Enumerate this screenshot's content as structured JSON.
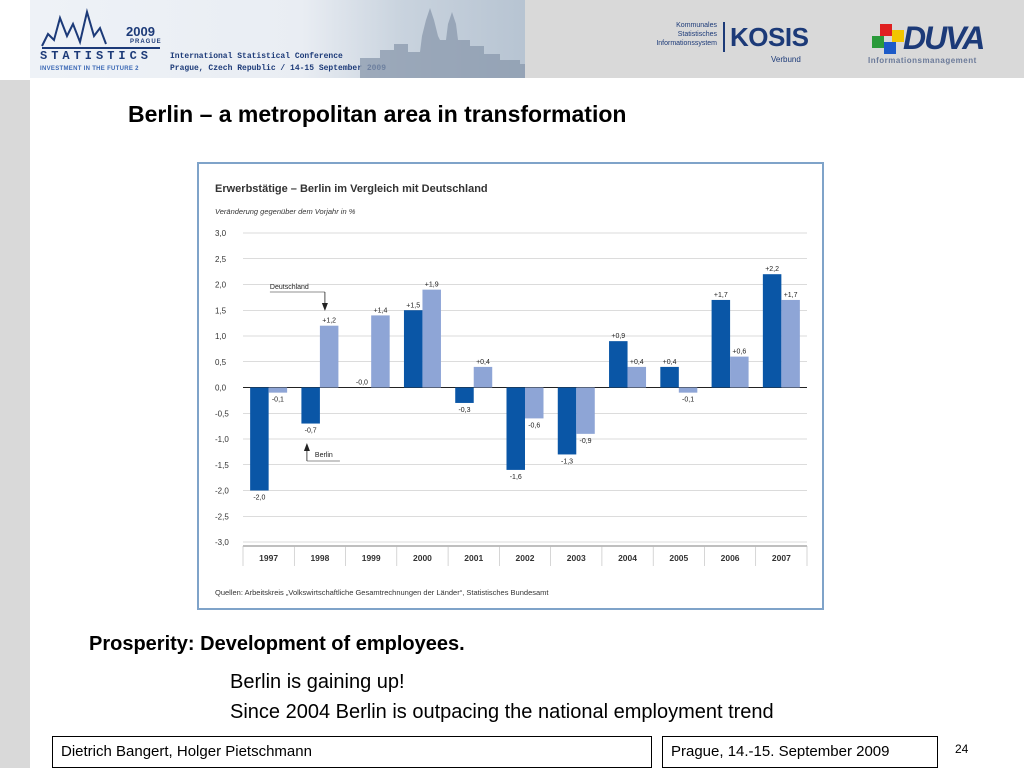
{
  "header": {
    "banner_year": "2009",
    "banner_prague": "PRAGUE",
    "banner_statistics": "STATISTICS",
    "banner_tagline": "INVESTMENT IN THE FUTURE 2",
    "conference_line1": "International Statistical Conference",
    "conference_line2": "Prague, Czech Republic / 14-15 September 2009",
    "kosis_small": [
      "Kommunales",
      "Statistisches",
      "Informationssystem"
    ],
    "kosis_title": "KOSIS",
    "kosis_verbund": "Verbund",
    "duva_title": "DUVA",
    "duva_sub": "Informationsmanagement"
  },
  "slide": {
    "title": "Berlin – a metropolitan area in transformation",
    "subhead": "Prosperity: Development of employees.",
    "line1": "Berlin is gaining up!",
    "line2": "Since 2004 Berlin is outpacing the national employment trend"
  },
  "footer": {
    "authors": "Dietrich Bangert, Holger Pietschmann",
    "event": "Prague, 14.-15. September 2009",
    "page": "24"
  },
  "colors": {
    "berlin": "#0a56a6",
    "deutschland": "#8ea5d6",
    "frame": "#7fa3c9"
  },
  "chart_data": {
    "type": "bar",
    "title": "Erwerbstätige – Berlin im Vergleich mit Deutschland",
    "subtitle": "Veränderung gegenüber dem Vorjahr in %",
    "source": "Quellen: Arbeitskreis „Volkswirtschaftliche Gesamtrechnungen der Länder“, Statistisches Bundesamt",
    "categories": [
      "1997",
      "1998",
      "1999",
      "2000",
      "2001",
      "2002",
      "2003",
      "2004",
      "2005",
      "2006",
      "2007"
    ],
    "series": [
      {
        "name": "Berlin",
        "values": [
          -2.0,
          -0.7,
          0.0,
          1.5,
          -0.3,
          -1.6,
          -1.3,
          0.9,
          0.4,
          1.7,
          2.2
        ],
        "labels": [
          "-2,0",
          "-0,7",
          "-0,0",
          "+1,5",
          "-0,3",
          "-1,6",
          "-1,3",
          "+0,9",
          "+0,4",
          "+1,7",
          "+2,2"
        ]
      },
      {
        "name": "Deutschland",
        "values": [
          -0.1,
          1.2,
          1.4,
          1.9,
          0.4,
          -0.6,
          -0.9,
          0.4,
          -0.1,
          0.6,
          1.7
        ],
        "labels": [
          "-0,1",
          "+1,2",
          "+1,4",
          "+1,9",
          "+0,4",
          "-0,6",
          "-0,9",
          "+0,4",
          "-0,1",
          "+0,6",
          "+1,7"
        ]
      }
    ],
    "ylim": [
      -3.0,
      3.0
    ],
    "yticks": [
      "3,0",
      "2,5",
      "2,0",
      "1,5",
      "1,0",
      "0,5",
      "0,0",
      "-0,5",
      "-1,0",
      "-1,5",
      "-2,0",
      "-2,5",
      "-3,0"
    ],
    "grid": true,
    "annotations": [
      {
        "text": "Deutschland",
        "series": "Deutschland",
        "category": "1998"
      },
      {
        "text": "Berlin",
        "series": "Berlin",
        "category": "1998"
      }
    ]
  }
}
